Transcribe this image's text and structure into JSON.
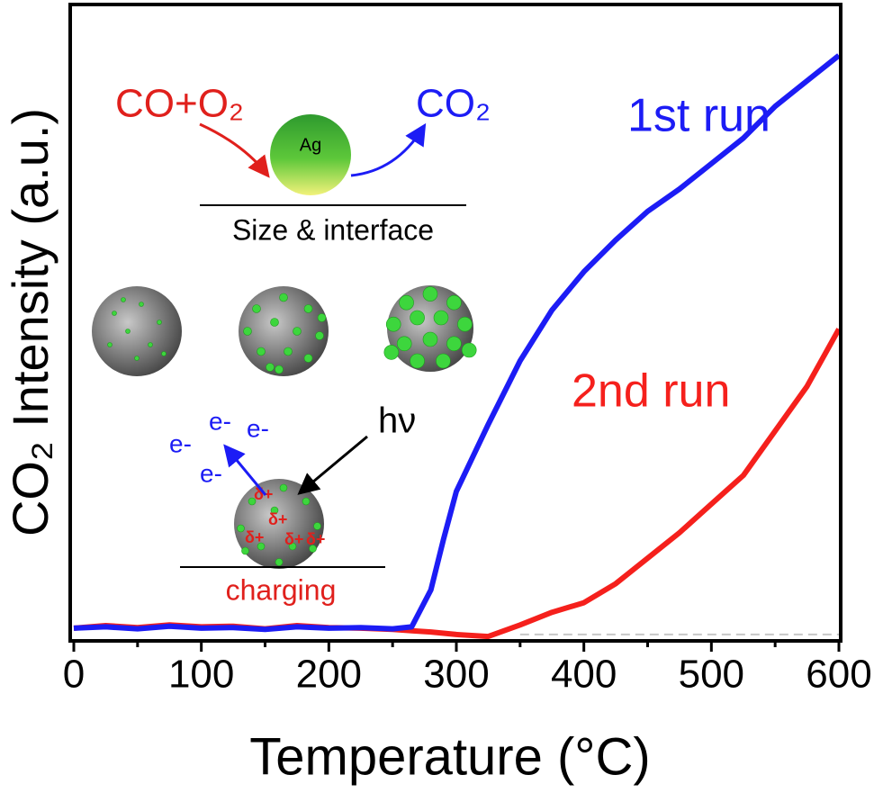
{
  "chart_data": {
    "type": "line",
    "xlabel": "Temperature (°C)",
    "ylabel": "CO₂ Intensity (a.u.)",
    "x": [
      0,
      25,
      50,
      75,
      100,
      125,
      150,
      175,
      200,
      225,
      250,
      265,
      280,
      290,
      300,
      325,
      350,
      375,
      400,
      425,
      450,
      475,
      500,
      525,
      550,
      575,
      600
    ],
    "series": [
      {
        "name": "1st run",
        "color": "#1c1cf5",
        "values": [
          2,
          2.2,
          1.9,
          2.3,
          2,
          2.1,
          1.8,
          2.2,
          2,
          2.1,
          1.9,
          2.2,
          8,
          16,
          23.5,
          34,
          44,
          52,
          58,
          63,
          67.5,
          71,
          75,
          79,
          84,
          88,
          92
        ]
      },
      {
        "name": "2nd run",
        "color": "#f5201c",
        "values": [
          2,
          2.4,
          2.1,
          2.5,
          2.2,
          2.3,
          1.9,
          2.4,
          2.1,
          2,
          1.8,
          1.6,
          1.4,
          1.2,
          1,
          0.7,
          2.5,
          4.5,
          6,
          9,
          13,
          17,
          21.5,
          26,
          33,
          40,
          49
        ]
      }
    ],
    "xlim": [
      0,
      600
    ],
    "ylim": [
      0,
      100
    ],
    "xticks": [
      0,
      100,
      200,
      300,
      400,
      500,
      600
    ],
    "xminorticks": [
      50,
      150,
      250,
      350,
      450,
      550
    ],
    "reference_line": {
      "x": [
        350,
        600
      ],
      "y": 1,
      "color": "#c8c8c8"
    },
    "inset": {
      "reactants": "CO+O₂",
      "product": "CO₂",
      "particle": "Ag",
      "caption": "Size & interface",
      "light": "hν",
      "electrons": [
        "e-",
        "e-",
        "e-",
        "e-"
      ],
      "charges": [
        "δ+",
        "δ+",
        "δ+",
        "δ+",
        "δ+"
      ],
      "process": "charging"
    }
  }
}
